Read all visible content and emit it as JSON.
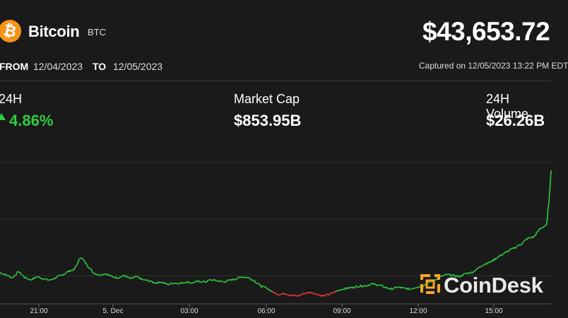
{
  "asset": {
    "name": "Bitcoin",
    "ticker": "BTC",
    "icon": "bitcoin-icon",
    "icon_glyph": "₿",
    "brand_color": "#f7931a"
  },
  "price": "$43,653.72",
  "range": {
    "from_label": "FROM",
    "from": "12/04/2023",
    "to_label": "TO",
    "to": "12/05/2023"
  },
  "captured": "Captured on 12/05/2023 13:22 PM EDT",
  "stats": {
    "change": {
      "label": "24H",
      "value": "4.86%",
      "color": "#2ecc40",
      "icon": "up-arrow-icon"
    },
    "market_cap": {
      "label": "Market Cap",
      "value": "$853.95B"
    },
    "volume": {
      "label": "24H Volume",
      "value": "$26.26B"
    }
  },
  "watermark": {
    "text": "CoinDesk",
    "icon": "coindesk-logo-icon",
    "color": "#f5a623"
  },
  "chart_data": {
    "type": "line",
    "x_ticks": [
      "21:00",
      "5. Dec",
      "03:00",
      "06:00",
      "09:00",
      "12:00",
      "15:00"
    ],
    "grid": true,
    "colors": {
      "up": "#2ecc40",
      "down": "#e53935"
    },
    "series": [
      {
        "values": [
          41700,
          41650,
          41600,
          41720,
          41600,
          41560,
          41620,
          41580,
          41550,
          41600,
          41650,
          41720,
          41760,
          42000,
          41850,
          41700,
          41650,
          41680,
          41620,
          41600,
          41640,
          41580,
          41620,
          41560,
          41540,
          41500,
          41520,
          41470,
          41500,
          41490,
          41520,
          41500,
          41530,
          41520,
          41560,
          41540,
          41520,
          41550,
          41580,
          41620,
          41600,
          41540,
          41440,
          41400,
          41320,
          41280,
          41300,
          41260,
          41250,
          41300,
          41320,
          41290,
          41250,
          41280,
          41330,
          41380,
          41400,
          41420,
          41440,
          41450,
          41480,
          41460,
          41420,
          41380,
          41420,
          41400,
          41380,
          41420,
          41440,
          41500,
          41560,
          41620,
          41660,
          41640,
          41620,
          41680,
          41700,
          41780,
          41860,
          41900,
          41980,
          42050,
          42120,
          42180,
          42250,
          42350,
          42380,
          42540,
          42600
        ]
      }
    ]
  }
}
